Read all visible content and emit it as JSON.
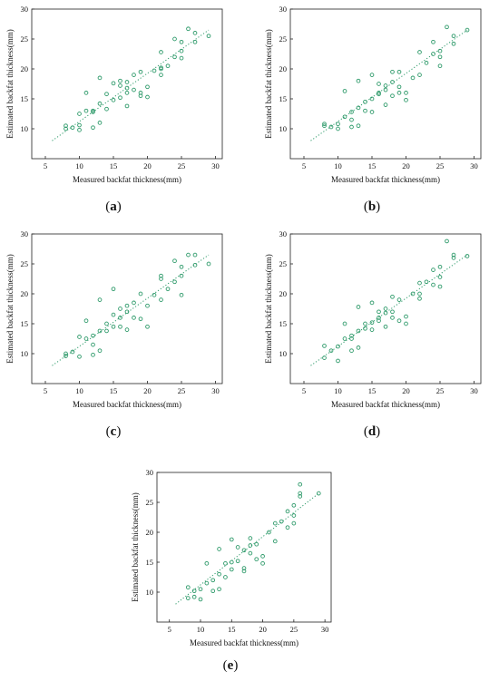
{
  "chart_data": [
    {
      "type": "scatter",
      "panel_label": "a",
      "xlabel": "Measured backfat thickness(mm)",
      "ylabel": "Estimated backfat thickness(mm)",
      "xlim": [
        3,
        31
      ],
      "ylim": [
        5,
        30
      ],
      "xticks": [
        5,
        10,
        15,
        20,
        25,
        30
      ],
      "yticks": [
        10,
        15,
        20,
        25,
        30
      ],
      "marker": "open-circle",
      "color": "#2e9a6a",
      "trend_line": {
        "style": "dotted",
        "x": [
          6,
          29
        ],
        "y": [
          8,
          26.5
        ]
      },
      "points": [
        [
          8,
          10.5
        ],
        [
          8,
          10
        ],
        [
          9,
          10.2
        ],
        [
          10,
          9.8
        ],
        [
          10,
          10.6
        ],
        [
          10,
          12.5
        ],
        [
          11,
          13
        ],
        [
          11,
          16
        ],
        [
          12,
          10.2
        ],
        [
          12,
          12.8
        ],
        [
          12,
          13
        ],
        [
          13,
          11
        ],
        [
          13,
          14.2
        ],
        [
          13,
          18.5
        ],
        [
          14,
          13.3
        ],
        [
          14,
          15.8
        ],
        [
          15,
          14.8
        ],
        [
          15,
          17.6
        ],
        [
          16,
          15.2
        ],
        [
          16,
          17.2
        ],
        [
          16,
          18
        ],
        [
          17,
          16
        ],
        [
          17,
          16.8
        ],
        [
          17,
          13.8
        ],
        [
          17,
          17.8
        ],
        [
          18,
          16.5
        ],
        [
          18,
          19
        ],
        [
          19,
          16
        ],
        [
          19,
          15.5
        ],
        [
          19,
          19.5
        ],
        [
          20,
          17
        ],
        [
          20,
          15.3
        ],
        [
          21,
          19.7
        ],
        [
          22,
          20.2
        ],
        [
          22,
          22.8
        ],
        [
          22,
          20
        ],
        [
          22,
          19
        ],
        [
          23,
          20.5
        ],
        [
          24,
          22
        ],
        [
          24,
          25
        ],
        [
          25,
          24.5
        ],
        [
          25,
          21.8
        ],
        [
          25,
          23
        ],
        [
          26,
          26.7
        ],
        [
          27,
          24.5
        ],
        [
          27,
          26
        ],
        [
          29,
          25.5
        ]
      ]
    },
    {
      "type": "scatter",
      "panel_label": "b",
      "xlabel": "Measured backfat thickness(mm)",
      "ylabel": "Estimated backfat thickness(mm)",
      "xlim": [
        3,
        31
      ],
      "ylim": [
        5,
        30
      ],
      "xticks": [
        5,
        10,
        15,
        20,
        25,
        30
      ],
      "yticks": [
        10,
        15,
        20,
        25,
        30
      ],
      "marker": "open-circle",
      "color": "#2e9a6a",
      "trend_line": {
        "style": "dotted",
        "x": [
          6,
          29
        ],
        "y": [
          8,
          26.5
        ]
      },
      "points": [
        [
          8,
          10.5
        ],
        [
          8,
          10.8
        ],
        [
          9,
          10.3
        ],
        [
          10,
          10
        ],
        [
          10,
          10.8
        ],
        [
          11,
          16.3
        ],
        [
          11,
          12
        ],
        [
          12,
          12.8
        ],
        [
          12,
          10.3
        ],
        [
          12,
          11.5
        ],
        [
          13,
          10.5
        ],
        [
          13,
          13.5
        ],
        [
          13,
          18
        ],
        [
          14,
          14.5
        ],
        [
          14,
          13
        ],
        [
          15,
          15
        ],
        [
          15,
          19
        ],
        [
          15,
          12.8
        ],
        [
          16,
          15.8
        ],
        [
          16,
          17.5
        ],
        [
          16,
          16
        ],
        [
          17,
          16.5
        ],
        [
          17,
          14
        ],
        [
          17,
          17.2
        ],
        [
          18,
          15.5
        ],
        [
          18,
          17.8
        ],
        [
          18,
          19.5
        ],
        [
          19,
          16
        ],
        [
          19,
          17
        ],
        [
          19,
          19.5
        ],
        [
          20,
          16
        ],
        [
          20,
          14.8
        ],
        [
          21,
          18.5
        ],
        [
          22,
          22.8
        ],
        [
          22,
          19
        ],
        [
          23,
          21
        ],
        [
          24,
          24.5
        ],
        [
          24,
          22.5
        ],
        [
          25,
          23
        ],
        [
          25,
          22
        ],
        [
          25,
          20.5
        ],
        [
          26,
          27
        ],
        [
          27,
          25.5
        ],
        [
          27,
          24.2
        ],
        [
          29,
          26.5
        ]
      ]
    },
    {
      "type": "scatter",
      "panel_label": "c",
      "xlabel": "Measured backfat thickness(mm)",
      "ylabel": "Estimated backfat thickness(mm)",
      "xlim": [
        3,
        31
      ],
      "ylim": [
        5,
        30
      ],
      "xticks": [
        5,
        10,
        15,
        20,
        25,
        30
      ],
      "yticks": [
        10,
        15,
        20,
        25,
        30
      ],
      "marker": "open-circle",
      "color": "#2e9a6a",
      "trend_line": {
        "style": "dotted",
        "x": [
          6,
          29
        ],
        "y": [
          8,
          26.5
        ]
      },
      "points": [
        [
          8,
          10
        ],
        [
          8,
          9.6
        ],
        [
          9,
          10.3
        ],
        [
          10,
          9.5
        ],
        [
          10,
          12.8
        ],
        [
          11,
          12.5
        ],
        [
          11,
          15.5
        ],
        [
          12,
          9.8
        ],
        [
          12,
          11.5
        ],
        [
          12,
          13
        ],
        [
          13,
          10.5
        ],
        [
          13,
          13.8
        ],
        [
          13,
          19
        ],
        [
          14,
          13.8
        ],
        [
          14,
          15
        ],
        [
          15,
          14.5
        ],
        [
          15,
          20.8
        ],
        [
          15,
          16.5
        ],
        [
          16,
          14.5
        ],
        [
          16,
          16
        ],
        [
          16,
          17.5
        ],
        [
          17,
          17
        ],
        [
          17,
          14
        ],
        [
          17,
          18
        ],
        [
          18,
          16
        ],
        [
          18,
          18.5
        ],
        [
          19,
          15.8
        ],
        [
          19,
          20
        ],
        [
          20,
          14.5
        ],
        [
          20,
          18
        ],
        [
          21,
          19.8
        ],
        [
          22,
          19
        ],
        [
          22,
          22.5
        ],
        [
          22,
          23
        ],
        [
          23,
          20.8
        ],
        [
          24,
          25.5
        ],
        [
          24,
          22
        ],
        [
          25,
          24.5
        ],
        [
          25,
          19.8
        ],
        [
          25,
          23
        ],
        [
          26,
          26.5
        ],
        [
          27,
          24.8
        ],
        [
          27,
          26.5
        ],
        [
          29,
          25
        ]
      ]
    },
    {
      "type": "scatter",
      "panel_label": "d",
      "xlabel": "Measured backfat thickness(mm)",
      "ylabel": "Estimated backfat thickness(mm)",
      "xlim": [
        3,
        31
      ],
      "ylim": [
        5,
        30
      ],
      "xticks": [
        5,
        10,
        15,
        20,
        25,
        30
      ],
      "yticks": [
        10,
        15,
        20,
        25,
        30
      ],
      "marker": "open-circle",
      "color": "#2e9a6a",
      "trend_line": {
        "style": "dotted",
        "x": [
          6,
          29
        ],
        "y": [
          8,
          26.5
        ]
      },
      "points": [
        [
          8,
          11.3
        ],
        [
          8,
          9.3
        ],
        [
          9,
          10.5
        ],
        [
          10,
          8.8
        ],
        [
          10,
          11.2
        ],
        [
          11,
          12.5
        ],
        [
          11,
          15
        ],
        [
          12,
          10.5
        ],
        [
          12,
          12.5
        ],
        [
          12,
          13
        ],
        [
          13,
          11
        ],
        [
          13,
          13.8
        ],
        [
          13,
          17.8
        ],
        [
          14,
          14.2
        ],
        [
          14,
          15
        ],
        [
          15,
          15.2
        ],
        [
          15,
          18.5
        ],
        [
          15,
          14
        ],
        [
          16,
          15.5
        ],
        [
          16,
          17
        ],
        [
          16,
          16
        ],
        [
          17,
          16.8
        ],
        [
          17,
          17.5
        ],
        [
          17,
          14.5
        ],
        [
          18,
          16
        ],
        [
          18,
          17
        ],
        [
          18,
          19.5
        ],
        [
          19,
          15.5
        ],
        [
          19,
          19
        ],
        [
          20,
          16.2
        ],
        [
          20,
          15
        ],
        [
          21,
          20
        ],
        [
          22,
          19.2
        ],
        [
          22,
          21.8
        ],
        [
          22,
          20
        ],
        [
          23,
          22
        ],
        [
          24,
          21.5
        ],
        [
          24,
          24
        ],
        [
          25,
          22.8
        ],
        [
          25,
          24.5
        ],
        [
          25,
          21.2
        ],
        [
          26,
          28.8
        ],
        [
          27,
          26.5
        ],
        [
          27,
          26
        ],
        [
          29,
          26.3
        ]
      ]
    },
    {
      "type": "scatter",
      "panel_label": "e",
      "xlabel": "Measured backfat thickness(mm)",
      "ylabel": "Estimated backfat thickness(mm)",
      "xlim": [
        3,
        31
      ],
      "ylim": [
        5,
        30
      ],
      "xticks": [
        5,
        10,
        15,
        20,
        25,
        30
      ],
      "yticks": [
        10,
        15,
        20,
        25,
        30
      ],
      "marker": "open-circle",
      "color": "#2e9a6a",
      "trend_line": {
        "style": "dotted",
        "x": [
          6,
          29
        ],
        "y": [
          8,
          26.5
        ]
      },
      "points": [
        [
          8,
          10.8
        ],
        [
          8,
          9
        ],
        [
          9,
          10.2
        ],
        [
          9,
          9.2
        ],
        [
          10,
          10.5
        ],
        [
          10,
          8.8
        ],
        [
          11,
          11.5
        ],
        [
          11,
          14.8
        ],
        [
          12,
          10.2
        ],
        [
          12,
          12
        ],
        [
          13,
          10.5
        ],
        [
          13,
          13
        ],
        [
          13,
          17.2
        ],
        [
          14,
          12.5
        ],
        [
          14,
          14.8
        ],
        [
          15,
          13.8
        ],
        [
          15,
          18.8
        ],
        [
          15,
          15
        ],
        [
          16,
          15.2
        ],
        [
          16,
          17.5
        ],
        [
          17,
          14
        ],
        [
          17,
          17
        ],
        [
          17,
          13.5
        ],
        [
          18,
          16.5
        ],
        [
          18,
          17.8
        ],
        [
          18,
          19
        ],
        [
          19,
          15.5
        ],
        [
          19,
          18
        ],
        [
          20,
          14.8
        ],
        [
          20,
          16
        ],
        [
          21,
          20
        ],
        [
          22,
          18.5
        ],
        [
          22,
          21.5
        ],
        [
          23,
          21.8
        ],
        [
          24,
          20.8
        ],
        [
          24,
          23.5
        ],
        [
          25,
          22.8
        ],
        [
          25,
          24.5
        ],
        [
          25,
          21.5
        ],
        [
          26,
          26
        ],
        [
          26,
          26.5
        ],
        [
          26,
          28
        ],
        [
          29,
          26.5
        ]
      ]
    }
  ]
}
